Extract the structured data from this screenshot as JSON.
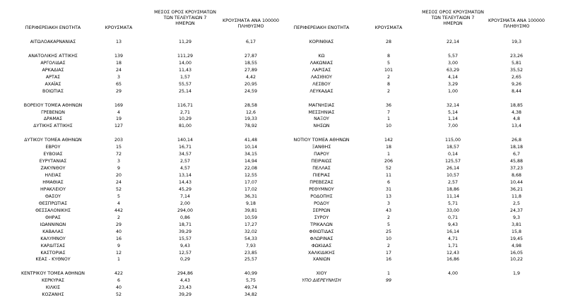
{
  "left": {
    "header": [
      [
        "ΠΕΡΙΦΕΡΕΙΑΚΗ ΕΝΟΤΗΤΑ"
      ],
      [
        "ΚΡΟΥΣΜΑΤΑ"
      ],
      [
        "ΜΕΣΟΣ ΟΡΟΣ ΚΡΟΥΣΜΑΤΩΝ",
        "ΤΩΝ ΤΕΛΕΥΤΑΙΩΝ 7",
        "ΗΜΕΡΩΝ"
      ],
      [
        "ΚΡΟΥΣΜΑΤΑ ΑΝΑ 100000",
        "ΠΛΗΘΥΣΜΟ"
      ]
    ],
    "groups": [
      [
        [
          "ΑΙΤΩΛΟΑΚΑΡΝΑΝΙΑΣ",
          "13",
          "11,29",
          "6,17"
        ]
      ],
      [
        [
          "ΑΝΑΤΟΛΙΚΗΣ ΑΤΤΙΚΗΣ",
          "139",
          "111,29",
          "27,87"
        ],
        [
          "ΑΡΓΟΛΙΔΑΣ",
          "18",
          "14,00",
          "18,55"
        ],
        [
          "ΑΡΚΑΔΙΑΣ",
          "24",
          "11,43",
          "27,89"
        ],
        [
          "ΑΡΤΑΣ",
          "3",
          "1,57",
          "4,42"
        ],
        [
          "ΑΧΑΪΑΣ",
          "65",
          "55,57",
          "20,95"
        ],
        [
          "ΒΟΙΩΤΙΑΣ",
          "29",
          "25,14",
          "24,59"
        ]
      ],
      [
        [
          "ΒΟΡΕΙΟΥ ΤΟΜΕΑ ΑΘΗΝΩΝ",
          "169",
          "116,71",
          "28,58"
        ],
        [
          "ΓΡΕΒΕΝΩΝ",
          "4",
          "2,71",
          "12,6"
        ],
        [
          "ΔΡΑΜΑΣ",
          "19",
          "10,29",
          "19,33"
        ],
        [
          "ΔΥΤΙΚΗΣ ΑΤΤΙΚΗΣ",
          "127",
          "81,00",
          "78,92"
        ]
      ],
      [
        [
          "ΔΥΤΙΚΟΥ ΤΟΜΕΑ ΑΘΗΝΩΝ",
          "203",
          "140,14",
          "41,48"
        ],
        [
          "ΕΒΡΟΥ",
          "15",
          "16,71",
          "10,14"
        ],
        [
          "ΕΥΒΟΙΑΣ",
          "72",
          "34,57",
          "34,15"
        ],
        [
          "ΕΥΡΥΤΑΝΙΑΣ",
          "3",
          "2,57",
          "14,94"
        ],
        [
          "ΖΑΚΥΝΘΟΥ",
          "9",
          "4,57",
          "22,08"
        ],
        [
          "ΗΛΕΙΑΣ",
          "20",
          "13,14",
          "12,55"
        ],
        [
          "ΗΜΑΘΙΑΣ",
          "24",
          "14,43",
          "17,07"
        ],
        [
          "ΗΡΑΚΛΕΙΟΥ",
          "52",
          "45,29",
          "17,02"
        ],
        [
          "ΘΑΣΟΥ",
          "5",
          "7,14",
          "36,31"
        ],
        [
          "ΘΕΣΠΡΩΤΙΑΣ",
          "4",
          "2,00",
          "9,18"
        ],
        [
          "ΘΕΣΣΑΛΟΝΙΚΗΣ",
          "442",
          "294,00",
          "39,81"
        ],
        [
          "ΘΗΡΑΣ",
          "2",
          "0,86",
          "10,59"
        ],
        [
          "ΙΩΑΝΝΙΝΩΝ",
          "29",
          "18,71",
          "17,27"
        ],
        [
          "ΚΑΒΑΛΑΣ",
          "40",
          "39,29",
          "32,02"
        ],
        [
          "ΚΑΛΥΜΝΟΥ",
          "16",
          "15,57",
          "54,33"
        ],
        [
          "ΚΑΡΔΙΤΣΑΣ",
          "9",
          "9,43",
          "7,93"
        ],
        [
          "ΚΑΣΤΟΡΙΑΣ",
          "12",
          "12,57",
          "23,85"
        ],
        [
          "ΚΕΑΣ - ΚΥΘΝΟΥ",
          "1",
          "0,29",
          "25,57"
        ]
      ],
      [
        [
          "ΚΕΝΤΡΙΚΟΥ ΤΟΜΕΑ ΑΘΗΝΩΝ",
          "422",
          "294,86",
          "40,99"
        ],
        [
          "ΚΕΡΚΥΡΑΣ",
          "6",
          "4,43",
          "5,75"
        ],
        [
          "ΚΙΛΚΙΣ",
          "40",
          "23,43",
          "49,74"
        ],
        [
          "ΚΟΖΑΝΗΣ",
          "52",
          "39,29",
          "34,82"
        ]
      ]
    ]
  },
  "right": {
    "header": [
      [
        "ΠΕΡΙΦΕΡΕΙΑΚΗ ΕΝΟΤΗΤΑ"
      ],
      [
        "ΚΡΟΥΣΜΑΤΑ"
      ],
      [
        "ΜΕΣΟΣ ΟΡΟΣ ΚΡΟΥΣΜΑΤΩΝ",
        "ΤΩΝ ΤΕΛΕΥΤΑΙΩΝ 7",
        "ΗΜΕΡΩΝ"
      ],
      [
        "ΚΡΟΥΣΜΑΤΑ ΑΝΑ 100000",
        "ΠΛΗΘΥΣΜΟ"
      ]
    ],
    "groups": [
      [
        [
          "ΚΟΡΙΝΘΙΑΣ",
          "28",
          "22,14",
          "19,3"
        ]
      ],
      [
        [
          "ΚΩ",
          "8",
          "5,57",
          "23,26"
        ],
        [
          "ΛΑΚΩΝΙΑΣ",
          "5",
          "3,00",
          "5,81"
        ],
        [
          "ΛΑΡΙΣΑΣ",
          "101",
          "63,29",
          "35,52"
        ],
        [
          "ΛΑΣΙΘΙΟΥ",
          "2",
          "4,14",
          "2,65"
        ],
        [
          "ΛΕΣΒΟΥ",
          "8",
          "3,29",
          "9,26"
        ],
        [
          "ΛΕΥΚΑΔΑΣ",
          "2",
          "1,00",
          "8,44"
        ]
      ],
      [
        [
          "ΜΑΓΝΗΣΙΑΣ",
          "36",
          "32,14",
          "18,85"
        ],
        [
          "ΜΕΣΣΗΝΙΑΣ",
          "7",
          "5,14",
          "4,38"
        ],
        [
          "ΝΑΞΟΥ",
          "1",
          "1,14",
          "4,8"
        ],
        [
          "ΝΗΣΩΝ",
          "10",
          "7,00",
          "13,4"
        ]
      ],
      [
        [
          "ΝΟΤΙΟΥ ΤΟΜΕΑ ΑΘΗΝΩΝ",
          "142",
          "115,00",
          "26,8"
        ],
        [
          "ΞΑΝΘΗΣ",
          "18",
          "18,57",
          "18,18"
        ],
        [
          "ΠΑΡΟΥ",
          "1",
          "0,14",
          "6,7"
        ],
        [
          "ΠΕΙΡΑΙΩΣ",
          "206",
          "125,57",
          "45,88"
        ],
        [
          "ΠΕΛΛΑΣ",
          "52",
          "26,14",
          "37,23"
        ],
        [
          "ΠΙΕΡΙΑΣ",
          "11",
          "10,57",
          "8,68"
        ],
        [
          "ΠΡΕΒΕΖΑΣ",
          "6",
          "2,57",
          "10,44"
        ],
        [
          "ΡΕΘΥΜΝΟΥ",
          "31",
          "18,86",
          "36,21"
        ],
        [
          "ΡΟΔΟΠΗΣ",
          "13",
          "11,14",
          "11,8"
        ],
        [
          "ΡΟΔΟΥ",
          "3",
          "5,71",
          "2,5"
        ],
        [
          "ΣΕΡΡΩΝ",
          "43",
          "33,00",
          "24,37"
        ],
        [
          "ΣΥΡΟΥ",
          "2",
          "0,71",
          "9,3"
        ],
        [
          "ΤΡΙΚΑΛΩΝ",
          "5",
          "9,43",
          "3,81"
        ],
        [
          "ΦΘΙΩΤΙΔΑΣ",
          "25",
          "16,14",
          "15,8"
        ],
        [
          "ΦΛΩΡΙΝΑΣ",
          "10",
          "4,71",
          "19,45"
        ],
        [
          "ΦΩΚΙΔΑΣ",
          "2",
          "1,71",
          "4,98"
        ],
        [
          "ΧΑΛΚΙΔΙΚΗΣ",
          "17",
          "12,43",
          "16,05"
        ],
        [
          "ΧΑΝΙΩΝ",
          "16",
          "16,86",
          "10,22"
        ]
      ],
      [
        [
          "ΧΙΟΥ",
          "1",
          "4,00",
          "1,9"
        ],
        [
          "ΥΠΟ ΔΙΕΡΕΥΝΗΣΗ",
          "99"
        ]
      ]
    ]
  }
}
